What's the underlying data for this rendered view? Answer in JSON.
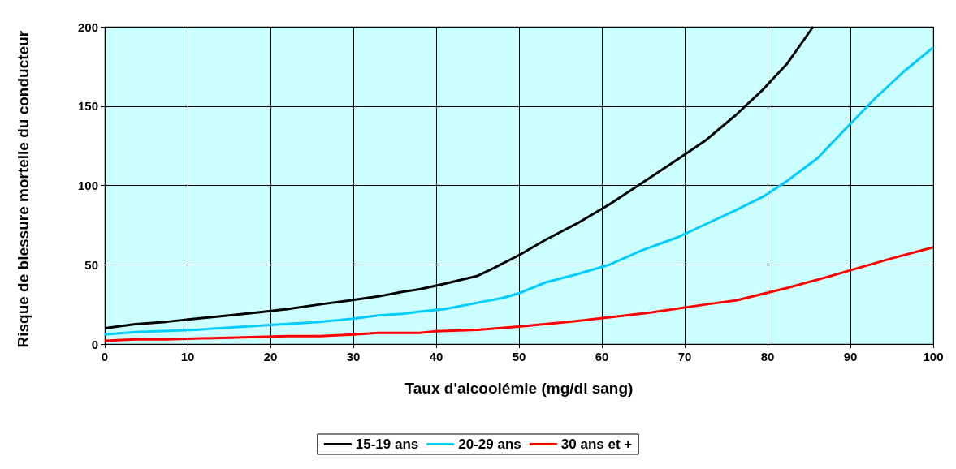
{
  "chart_data": {
    "type": "line",
    "xlabel": "Taux d'alcoolémie (mg/dl sang)",
    "ylabel": "Risque de blessure mortelle du conducteur",
    "xlim": [
      0,
      100
    ],
    "xticks": [
      0,
      10,
      20,
      30,
      40,
      50,
      60,
      70,
      80,
      90,
      100
    ],
    "ylim": [
      0,
      200
    ],
    "yticks": [
      0,
      50,
      100,
      150,
      200
    ],
    "grid": true,
    "legend": "bottom",
    "marker": "none",
    "line_style": "solid",
    "series": [
      {
        "name": "15-19 ans",
        "color": "#000000",
        "x": [
          0,
          3.7,
          7.4,
          11,
          15,
          18.5,
          22,
          26,
          29.6,
          33,
          36,
          38,
          41,
          45,
          47,
          50,
          53.3,
          57,
          60.9,
          65,
          69.6,
          72.6,
          76.2,
          79.5,
          82.4,
          85.5
        ],
        "values": [
          10,
          12.5,
          14,
          16,
          18,
          20,
          22,
          25,
          27.5,
          30,
          33,
          34.5,
          38,
          43,
          48,
          56,
          66,
          76,
          88,
          102,
          118,
          128.7,
          144.5,
          160.7,
          177,
          200
        ]
      },
      {
        "name": "20-29 ans",
        "color": "#00ccff",
        "x": [
          0,
          3.7,
          11,
          18.5,
          26,
          30,
          33,
          36,
          38,
          41,
          44,
          48,
          50,
          53.3,
          57,
          60.9,
          64.8,
          69,
          72.6,
          76.2,
          79.5,
          82.4,
          86,
          89.3,
          93,
          96.5,
          100
        ],
        "values": [
          6,
          7.5,
          9,
          11.5,
          14,
          16,
          18,
          19,
          20.5,
          22,
          25,
          29,
          32,
          39,
          44,
          50,
          59,
          67,
          75.7,
          84.5,
          93,
          103,
          117,
          135,
          155,
          172,
          187
        ]
      },
      {
        "name": "30 ans et +",
        "color": "#ff0000",
        "x": [
          0,
          3.7,
          7.4,
          15,
          22,
          26,
          30,
          33,
          38,
          40,
          45,
          50,
          56.9,
          62,
          66,
          72.6,
          76.2,
          82.4,
          87.5,
          91,
          95,
          100
        ],
        "values": [
          2,
          3,
          3,
          4,
          5,
          5,
          6,
          7,
          7,
          8,
          9,
          11,
          14.5,
          17.5,
          20,
          25,
          27.5,
          35.4,
          42.7,
          48,
          54,
          61
        ]
      }
    ]
  }
}
